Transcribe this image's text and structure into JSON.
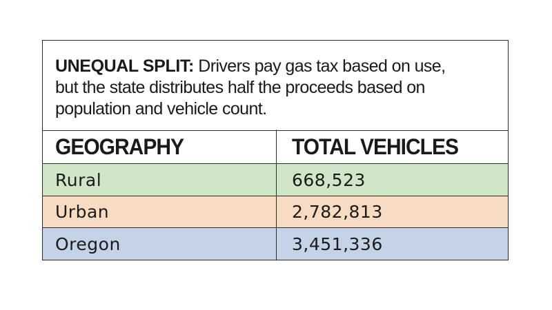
{
  "chart_data": {
    "type": "table",
    "title_lead": "UNEQUAL SPLIT:",
    "title_lines": [
      "Drivers pay gas tax based on use,",
      "but the state distributes half the proceeds based on",
      "population and vehicle count."
    ],
    "columns": [
      "GEOGRAPHY",
      "TOTAL VEHICLES"
    ],
    "rows": [
      {
        "geography": "Rural",
        "total_vehicles": "668,523",
        "color": "#d0e6c8"
      },
      {
        "geography": "Urban",
        "total_vehicles": "2,782,813",
        "color": "#f8dcc1"
      },
      {
        "geography": "Oregon",
        "total_vehicles": "3,451,336",
        "color": "#c4d4e6"
      }
    ],
    "values": [
      668523,
      2782813,
      3451336
    ]
  }
}
